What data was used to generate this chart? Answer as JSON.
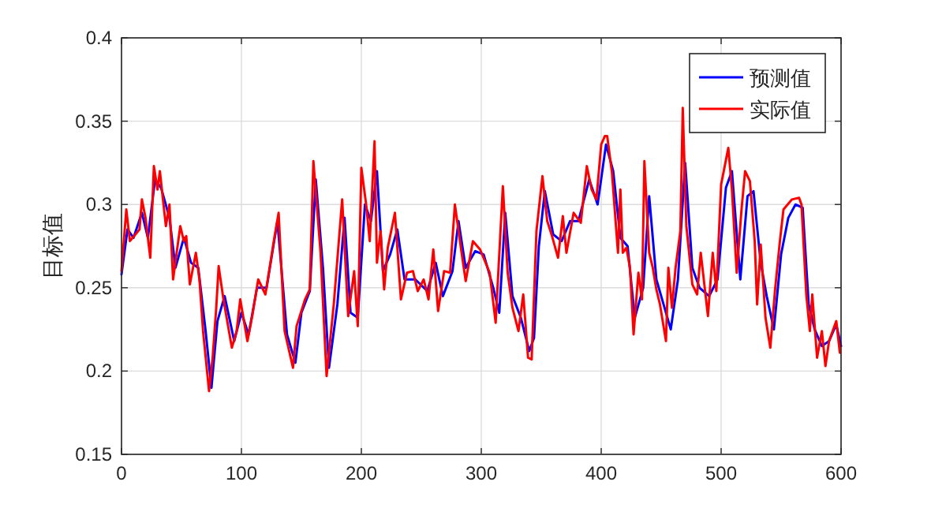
{
  "chart_data": {
    "type": "line",
    "ylabel": "目标值",
    "xlim": [
      0,
      600
    ],
    "ylim": [
      0.15,
      0.4
    ],
    "xticks": [
      0,
      100,
      200,
      300,
      400,
      500,
      600
    ],
    "yticks": [
      0.15,
      0.2,
      0.25,
      0.3,
      0.35,
      0.4
    ],
    "grid": true,
    "legend": "top right",
    "series": [
      {
        "name": "预测值",
        "color": "#0000ff",
        "x": [
          0,
          5,
          10,
          17,
          22,
          28,
          33,
          40,
          45,
          52,
          58,
          64,
          70,
          75,
          80,
          86,
          94,
          100,
          106,
          113,
          121,
          130,
          138,
          145,
          150,
          157,
          162,
          168,
          173,
          180,
          186,
          191,
          197,
          203,
          208,
          213,
          218,
          224,
          230,
          236,
          245,
          255,
          262,
          268,
          276,
          281,
          287,
          295,
          302,
          310,
          315,
          320,
          326,
          333,
          340,
          344,
          348,
          353,
          360,
          367,
          374,
          381,
          390,
          397,
          404,
          410,
          416,
          422,
          428,
          435,
          440,
          446,
          452,
          458,
          464,
          470,
          476,
          482,
          490,
          497,
          504,
          509,
          516,
          522,
          527,
          533,
          538,
          544,
          550,
          556,
          562,
          568,
          573,
          578,
          584,
          590,
          596,
          600
        ],
        "values": [
          0.258,
          0.285,
          0.28,
          0.295,
          0.28,
          0.315,
          0.31,
          0.292,
          0.262,
          0.28,
          0.265,
          0.262,
          0.225,
          0.19,
          0.23,
          0.245,
          0.218,
          0.235,
          0.222,
          0.25,
          0.25,
          0.29,
          0.222,
          0.205,
          0.235,
          0.248,
          0.315,
          0.262,
          0.202,
          0.24,
          0.292,
          0.235,
          0.232,
          0.3,
          0.29,
          0.32,
          0.26,
          0.27,
          0.285,
          0.255,
          0.255,
          0.248,
          0.265,
          0.245,
          0.26,
          0.29,
          0.262,
          0.272,
          0.27,
          0.25,
          0.235,
          0.295,
          0.245,
          0.232,
          0.212,
          0.22,
          0.275,
          0.308,
          0.282,
          0.278,
          0.29,
          0.29,
          0.315,
          0.3,
          0.336,
          0.32,
          0.28,
          0.275,
          0.232,
          0.25,
          0.305,
          0.255,
          0.24,
          0.225,
          0.255,
          0.325,
          0.262,
          0.25,
          0.245,
          0.255,
          0.31,
          0.32,
          0.255,
          0.305,
          0.308,
          0.265,
          0.245,
          0.225,
          0.27,
          0.292,
          0.3,
          0.298,
          0.24,
          0.225,
          0.215,
          0.218,
          0.228,
          0.215
        ]
      },
      {
        "name": "实际值",
        "color": "#ff0000",
        "x": [
          0,
          4,
          7,
          10.5,
          15,
          17,
          20,
          24,
          27,
          30,
          32,
          37,
          40,
          43,
          49,
          52,
          54,
          57,
          62,
          65,
          68,
          73,
          76,
          79,
          81,
          85,
          92,
          96,
          99,
          105,
          109,
          114,
          120,
          127,
          131,
          136,
          143,
          146,
          153,
          157,
          160,
          166,
          171,
          177,
          184,
          189,
          194,
          197,
          200,
          204,
          207,
          211,
          213,
          216,
          219,
          222,
          228,
          233,
          238,
          243,
          247,
          252,
          256,
          260,
          264,
          269,
          274,
          278,
          283,
          287,
          293,
          299,
          307,
          312,
          318,
          322,
          326,
          331,
          335,
          339,
          342,
          346,
          351,
          355,
          359,
          364,
          368,
          371,
          377,
          383,
          388,
          392,
          396,
          400,
          403,
          405,
          409,
          412,
          414,
          416,
          418,
          421,
          424,
          427,
          431,
          434,
          436,
          440,
          443,
          446,
          449,
          454,
          456,
          459,
          462,
          466,
          468,
          471,
          476,
          480,
          483,
          489,
          493,
          496,
          500,
          503,
          506,
          509,
          513,
          517,
          520,
          524,
          528,
          530,
          533,
          537,
          541,
          545,
          549,
          552,
          559,
          565,
          567,
          571,
          574,
          576,
          580,
          584,
          587,
          590,
          596,
          599
        ],
        "values": [
          0.26,
          0.297,
          0.278,
          0.281,
          0.285,
          0.303,
          0.292,
          0.268,
          0.323,
          0.309,
          0.32,
          0.287,
          0.3,
          0.255,
          0.287,
          0.278,
          0.281,
          0.252,
          0.271,
          0.255,
          0.224,
          0.188,
          0.208,
          0.238,
          0.263,
          0.243,
          0.214,
          0.224,
          0.243,
          0.218,
          0.233,
          0.255,
          0.246,
          0.278,
          0.295,
          0.224,
          0.202,
          0.227,
          0.243,
          0.249,
          0.326,
          0.271,
          0.197,
          0.24,
          0.303,
          0.233,
          0.26,
          0.227,
          0.322,
          0.3,
          0.278,
          0.338,
          0.265,
          0.284,
          0.249,
          0.274,
          0.295,
          0.243,
          0.259,
          0.26,
          0.248,
          0.255,
          0.243,
          0.273,
          0.236,
          0.26,
          0.259,
          0.3,
          0.274,
          0.254,
          0.278,
          0.273,
          0.259,
          0.229,
          0.311,
          0.259,
          0.238,
          0.224,
          0.246,
          0.208,
          0.207,
          0.284,
          0.317,
          0.29,
          0.281,
          0.268,
          0.293,
          0.271,
          0.295,
          0.289,
          0.323,
          0.309,
          0.303,
          0.336,
          0.341,
          0.341,
          0.319,
          0.29,
          0.271,
          0.309,
          0.271,
          0.274,
          0.262,
          0.222,
          0.259,
          0.243,
          0.326,
          0.271,
          0.262,
          0.249,
          0.24,
          0.218,
          0.262,
          0.238,
          0.262,
          0.284,
          0.358,
          0.287,
          0.252,
          0.246,
          0.271,
          0.233,
          0.271,
          0.248,
          0.312,
          0.323,
          0.334,
          0.309,
          0.259,
          0.297,
          0.32,
          0.314,
          0.278,
          0.24,
          0.276,
          0.232,
          0.214,
          0.249,
          0.278,
          0.297,
          0.303,
          0.304,
          0.3,
          0.246,
          0.224,
          0.246,
          0.208,
          0.224,
          0.203,
          0.218,
          0.23,
          0.211
        ]
      }
    ]
  }
}
